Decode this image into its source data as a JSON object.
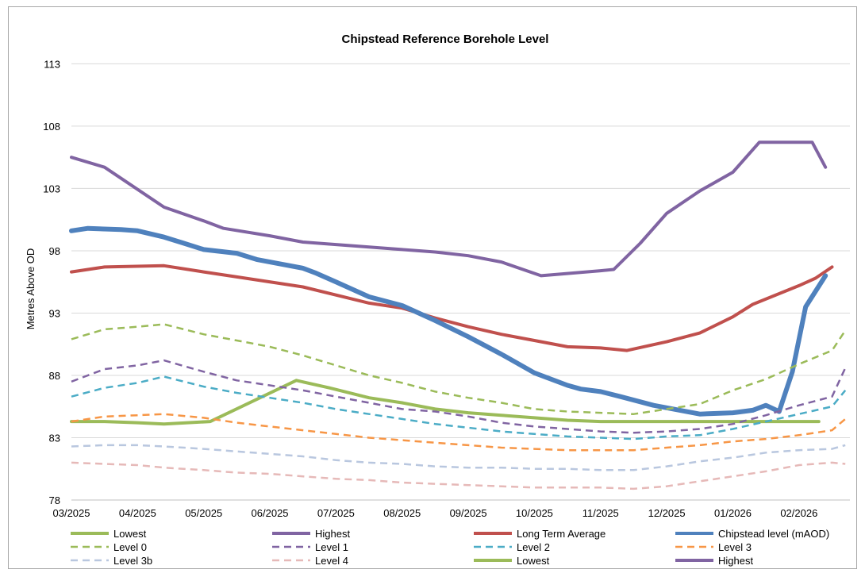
{
  "chart_data": {
    "type": "line",
    "title": "Chipstead Reference Borehole Level",
    "ylabel": "Metres Above OD",
    "xlabel": "",
    "ylim": [
      78,
      115
    ],
    "yticks": [
      78,
      83,
      88,
      93,
      98,
      103,
      108,
      113
    ],
    "x_categories": [
      "03/2025",
      "04/2025",
      "05/2025",
      "06/2025",
      "07/2025",
      "08/2025",
      "09/2025",
      "10/2025",
      "11/2025",
      "12/2025",
      "01/2026",
      "02/2026"
    ],
    "grid": "horizontal",
    "legend_position": "bottom",
    "series": [
      {
        "name": "Lowest",
        "color": "#9bbb59",
        "dash": false,
        "width": 4,
        "points": [
          [
            0,
            84.3
          ],
          [
            0.5,
            84.3
          ],
          [
            1,
            84.2
          ],
          [
            1.4,
            84.1
          ],
          [
            2.1,
            84.3
          ],
          [
            3.4,
            87.6
          ],
          [
            3.9,
            87
          ],
          [
            4.5,
            86.2
          ],
          [
            5,
            85.8
          ],
          [
            5.5,
            85.3
          ],
          [
            6,
            85
          ],
          [
            6.5,
            84.8
          ],
          [
            7,
            84.6
          ],
          [
            7.5,
            84.4
          ],
          [
            8,
            84.3
          ],
          [
            9,
            84.3
          ],
          [
            10,
            84.3
          ],
          [
            11,
            84.3
          ],
          [
            11.3,
            84.3
          ]
        ]
      },
      {
        "name": "Highest",
        "color": "#8064a2",
        "dash": false,
        "width": 4,
        "points": [
          [
            0,
            105.5
          ],
          [
            0.5,
            104.7
          ],
          [
            1.4,
            101.5
          ],
          [
            2,
            100.4
          ],
          [
            2.3,
            99.8
          ],
          [
            3,
            99.2
          ],
          [
            3.5,
            98.7
          ],
          [
            4.5,
            98.3
          ],
          [
            5,
            98.1
          ],
          [
            5.5,
            97.9
          ],
          [
            6,
            97.6
          ],
          [
            6.5,
            97.1
          ],
          [
            7.1,
            96
          ],
          [
            8,
            96.4
          ],
          [
            8.2,
            96.5
          ],
          [
            8.6,
            98.6
          ],
          [
            9,
            101
          ],
          [
            9.5,
            102.8
          ],
          [
            10,
            104.3
          ],
          [
            10.4,
            106.7
          ],
          [
            11.2,
            106.7
          ],
          [
            11.4,
            104.7
          ]
        ]
      },
      {
        "name": "Long Term Average",
        "color": "#c0504d",
        "dash": false,
        "width": 4,
        "points": [
          [
            0,
            96.3
          ],
          [
            0.5,
            96.7
          ],
          [
            1.4,
            96.8
          ],
          [
            2,
            96.3
          ],
          [
            2.5,
            95.9
          ],
          [
            3.5,
            95.1
          ],
          [
            4.5,
            93.8
          ],
          [
            5,
            93.4
          ],
          [
            5.5,
            92.6
          ],
          [
            6,
            91.9
          ],
          [
            6.5,
            91.3
          ],
          [
            7,
            90.8
          ],
          [
            7.5,
            90.3
          ],
          [
            8,
            90.2
          ],
          [
            8.4,
            90
          ],
          [
            9,
            90.7
          ],
          [
            9.5,
            91.4
          ],
          [
            10,
            92.7
          ],
          [
            10.3,
            93.7
          ],
          [
            11,
            95.2
          ],
          [
            11.25,
            95.8
          ],
          [
            11.5,
            96.7
          ]
        ]
      },
      {
        "name": "Chipstead level (mAOD)",
        "color": "#4f81bd",
        "dash": false,
        "width": 6,
        "points": [
          [
            0,
            99.6
          ],
          [
            0.25,
            99.8
          ],
          [
            0.75,
            99.7
          ],
          [
            1,
            99.6
          ],
          [
            1.4,
            99.1
          ],
          [
            1.7,
            98.6
          ],
          [
            2,
            98.1
          ],
          [
            2.5,
            97.8
          ],
          [
            2.8,
            97.3
          ],
          [
            3,
            97.1
          ],
          [
            3.5,
            96.6
          ],
          [
            3.7,
            96.2
          ],
          [
            4,
            95.5
          ],
          [
            4.5,
            94.3
          ],
          [
            5,
            93.6
          ],
          [
            5.5,
            92.4
          ],
          [
            6,
            91.1
          ],
          [
            6.5,
            89.7
          ],
          [
            7,
            88.2
          ],
          [
            7.5,
            87.2
          ],
          [
            7.7,
            86.9
          ],
          [
            8,
            86.7
          ],
          [
            8.3,
            86.3
          ],
          [
            8.8,
            85.6
          ],
          [
            9.5,
            84.9
          ],
          [
            10,
            85
          ],
          [
            10.3,
            85.2
          ],
          [
            10.5,
            85.6
          ],
          [
            10.7,
            85.1
          ],
          [
            10.9,
            88.3
          ],
          [
            11.1,
            93.5
          ],
          [
            11.4,
            96
          ]
        ]
      },
      {
        "name": "Level 0",
        "color": "#9bbb59",
        "dash": true,
        "width": 2.5,
        "points": [
          [
            0,
            90.9
          ],
          [
            0.5,
            91.7
          ],
          [
            1,
            91.9
          ],
          [
            1.4,
            92.1
          ],
          [
            2,
            91.3
          ],
          [
            2.5,
            90.8
          ],
          [
            3,
            90.3
          ],
          [
            3.5,
            89.6
          ],
          [
            4,
            88.8
          ],
          [
            4.5,
            88
          ],
          [
            5,
            87.4
          ],
          [
            5.5,
            86.7
          ],
          [
            6,
            86.2
          ],
          [
            6.5,
            85.8
          ],
          [
            7,
            85.3
          ],
          [
            7.5,
            85.1
          ],
          [
            8,
            85
          ],
          [
            8.5,
            84.9
          ],
          [
            9,
            85.3
          ],
          [
            9.5,
            85.7
          ],
          [
            10,
            86.8
          ],
          [
            10.5,
            87.7
          ],
          [
            11,
            88.9
          ],
          [
            11.5,
            90
          ],
          [
            11.7,
            91.6
          ]
        ]
      },
      {
        "name": "Level 1",
        "color": "#8064a2",
        "dash": true,
        "width": 2.5,
        "points": [
          [
            0,
            87.5
          ],
          [
            0.5,
            88.5
          ],
          [
            1,
            88.8
          ],
          [
            1.4,
            89.2
          ],
          [
            2,
            88.3
          ],
          [
            2.5,
            87.6
          ],
          [
            3,
            87.2
          ],
          [
            3.5,
            86.8
          ],
          [
            4,
            86.3
          ],
          [
            4.5,
            85.8
          ],
          [
            5,
            85.3
          ],
          [
            5.5,
            85.1
          ],
          [
            6,
            84.7
          ],
          [
            6.5,
            84.2
          ],
          [
            7,
            83.9
          ],
          [
            7.5,
            83.7
          ],
          [
            8,
            83.5
          ],
          [
            8.5,
            83.4
          ],
          [
            9,
            83.5
          ],
          [
            9.5,
            83.7
          ],
          [
            10,
            84.1
          ],
          [
            10.5,
            84.8
          ],
          [
            11,
            85.6
          ],
          [
            11.5,
            86.3
          ],
          [
            11.7,
            88.6
          ]
        ]
      },
      {
        "name": "Level 2",
        "color": "#4bacc6",
        "dash": true,
        "width": 2.5,
        "points": [
          [
            0,
            86.3
          ],
          [
            0.5,
            87
          ],
          [
            1,
            87.4
          ],
          [
            1.4,
            87.9
          ],
          [
            2,
            87.1
          ],
          [
            2.5,
            86.6
          ],
          [
            3,
            86.2
          ],
          [
            3.5,
            85.8
          ],
          [
            4,
            85.3
          ],
          [
            4.5,
            84.9
          ],
          [
            5,
            84.5
          ],
          [
            5.5,
            84.1
          ],
          [
            6,
            83.8
          ],
          [
            6.5,
            83.5
          ],
          [
            7,
            83.3
          ],
          [
            7.5,
            83.1
          ],
          [
            8,
            83
          ],
          [
            8.5,
            82.9
          ],
          [
            9,
            83.1
          ],
          [
            9.5,
            83.2
          ],
          [
            10,
            83.7
          ],
          [
            10.5,
            84.3
          ],
          [
            11,
            84.9
          ],
          [
            11.5,
            85.5
          ],
          [
            11.7,
            86.8
          ]
        ]
      },
      {
        "name": "Level 3",
        "color": "#f79646",
        "dash": true,
        "width": 2.5,
        "points": [
          [
            0,
            84.3
          ],
          [
            0.5,
            84.7
          ],
          [
            1,
            84.8
          ],
          [
            1.4,
            84.9
          ],
          [
            2,
            84.6
          ],
          [
            2.5,
            84.2
          ],
          [
            3,
            83.9
          ],
          [
            3.5,
            83.6
          ],
          [
            4,
            83.3
          ],
          [
            4.5,
            83
          ],
          [
            5,
            82.8
          ],
          [
            5.5,
            82.6
          ],
          [
            6,
            82.4
          ],
          [
            6.5,
            82.2
          ],
          [
            7,
            82.1
          ],
          [
            7.5,
            82
          ],
          [
            8,
            82
          ],
          [
            8.5,
            82
          ],
          [
            9,
            82.2
          ],
          [
            9.5,
            82.4
          ],
          [
            10,
            82.7
          ],
          [
            10.5,
            82.9
          ],
          [
            11,
            83.2
          ],
          [
            11.5,
            83.6
          ],
          [
            11.7,
            84.5
          ]
        ]
      },
      {
        "name": "Level 3b",
        "color": "#b9c7df",
        "dash": true,
        "width": 2.5,
        "points": [
          [
            0,
            82.3
          ],
          [
            0.5,
            82.4
          ],
          [
            1,
            82.4
          ],
          [
            1.4,
            82.3
          ],
          [
            2,
            82.1
          ],
          [
            2.5,
            81.9
          ],
          [
            3,
            81.7
          ],
          [
            3.5,
            81.5
          ],
          [
            4,
            81.2
          ],
          [
            4.5,
            81
          ],
          [
            5,
            80.9
          ],
          [
            5.5,
            80.7
          ],
          [
            6,
            80.6
          ],
          [
            6.5,
            80.6
          ],
          [
            7,
            80.5
          ],
          [
            7.5,
            80.5
          ],
          [
            8,
            80.4
          ],
          [
            8.5,
            80.4
          ],
          [
            9,
            80.7
          ],
          [
            9.5,
            81.1
          ],
          [
            10,
            81.4
          ],
          [
            10.5,
            81.8
          ],
          [
            11,
            82
          ],
          [
            11.5,
            82.1
          ],
          [
            11.7,
            82.4
          ]
        ]
      },
      {
        "name": "Level 4",
        "color": "#e6b9b8",
        "dash": true,
        "width": 2.5,
        "points": [
          [
            0,
            81
          ],
          [
            0.5,
            80.9
          ],
          [
            1,
            80.8
          ],
          [
            1.4,
            80.6
          ],
          [
            2,
            80.4
          ],
          [
            2.5,
            80.2
          ],
          [
            3,
            80.1
          ],
          [
            3.5,
            79.9
          ],
          [
            4,
            79.7
          ],
          [
            4.5,
            79.6
          ],
          [
            5,
            79.4
          ],
          [
            5.5,
            79.3
          ],
          [
            6,
            79.2
          ],
          [
            6.5,
            79.1
          ],
          [
            7,
            79
          ],
          [
            7.5,
            79
          ],
          [
            8,
            79
          ],
          [
            8.5,
            78.9
          ],
          [
            9,
            79.1
          ],
          [
            9.5,
            79.5
          ],
          [
            10,
            79.9
          ],
          [
            10.5,
            80.3
          ],
          [
            11,
            80.8
          ],
          [
            11.5,
            81
          ],
          [
            11.7,
            80.9
          ]
        ]
      }
    ],
    "legend": [
      {
        "label": "Lowest",
        "color": "#9bbb59",
        "dash": false
      },
      {
        "label": "Highest",
        "color": "#8064a2",
        "dash": false
      },
      {
        "label": "Long Term Average",
        "color": "#c0504d",
        "dash": false
      },
      {
        "label": "Chipstead level (mAOD)",
        "color": "#4f81bd",
        "dash": false
      },
      {
        "label": "Level 0",
        "color": "#9bbb59",
        "dash": true
      },
      {
        "label": "Level 1",
        "color": "#8064a2",
        "dash": true
      },
      {
        "label": "Level 2",
        "color": "#4bacc6",
        "dash": true
      },
      {
        "label": "Level 3",
        "color": "#f79646",
        "dash": true
      },
      {
        "label": "Level 3b",
        "color": "#b9c7df",
        "dash": true
      },
      {
        "label": "Level 4",
        "color": "#e6b9b8",
        "dash": true
      },
      {
        "label": "Lowest",
        "color": "#9bbb59",
        "dash": false
      },
      {
        "label": "Highest",
        "color": "#8064a2",
        "dash": false
      }
    ]
  }
}
